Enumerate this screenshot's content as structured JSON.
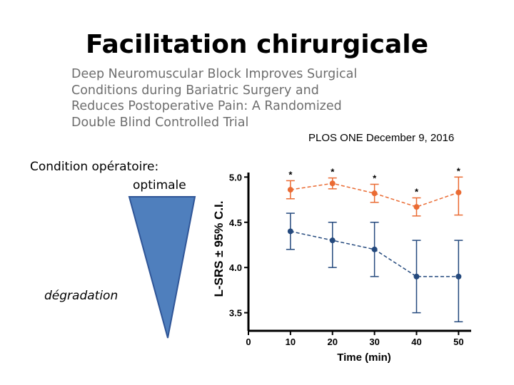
{
  "slide": {
    "title": "Facilitation chirurgicale",
    "article_title_lines": [
      "Deep Neuromuscular Block Improves Surgical",
      "Conditions during Bariatric Surgery and",
      "Reduces Postoperative Pain: A Randomized",
      "Double Blind Controlled Trial"
    ],
    "journal": "PLOS ONE December 9, 2016",
    "condition_label": "Condition opératoire:",
    "optimal_label": "optimale",
    "degradation_label": "dégradation",
    "triangle_color": "#4f7fbd"
  },
  "chart_data": {
    "type": "line",
    "title": "",
    "xlabel": "Time (min)",
    "ylabel": "L-SRS ± 95% C.I.",
    "x": [
      10,
      20,
      30,
      40,
      50
    ],
    "xticks": [
      0,
      10,
      20,
      30,
      40,
      50
    ],
    "xtick_labels": [
      "0",
      "10",
      "20",
      "30",
      "40",
      "50"
    ],
    "yticks": [
      3.5,
      4.0,
      4.5,
      5.0
    ],
    "ytick_labels": [
      "3.5",
      "4.0",
      "4.5",
      "5.0"
    ],
    "xlim": [
      0,
      53
    ],
    "ylim": [
      3.3,
      5.05
    ],
    "grid": false,
    "series": [
      {
        "name": "orange",
        "color": "#ea6b33",
        "values": [
          4.86,
          4.93,
          4.82,
          4.67,
          4.83
        ],
        "ci_low": [
          4.76,
          4.87,
          4.72,
          4.57,
          4.58
        ],
        "ci_high": [
          4.96,
          4.99,
          4.92,
          4.77,
          5.0
        ],
        "significance": [
          "*",
          "*",
          "*",
          "*",
          "*"
        ]
      },
      {
        "name": "blue",
        "color": "#24497d",
        "values": [
          4.4,
          4.3,
          4.2,
          3.9,
          3.9
        ],
        "ci_low": [
          4.2,
          4.0,
          3.9,
          3.5,
          3.4
        ],
        "ci_high": [
          4.6,
          4.5,
          4.5,
          4.3,
          4.3
        ]
      }
    ]
  }
}
